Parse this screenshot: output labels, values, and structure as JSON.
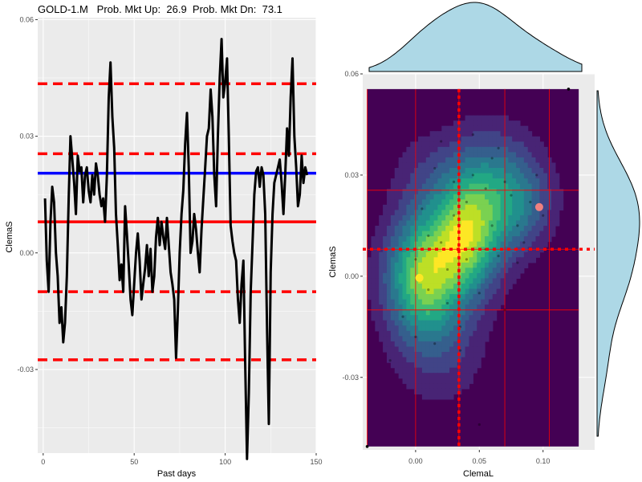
{
  "title": "GOLD-1.M   Prob. Mkt Up:  26.9  Prob. Mkt Dn:  73.1",
  "colors": {
    "panel_bg": "#ebebeb",
    "grid": "#ffffff",
    "series_line": "#000000",
    "level_lines": "#ff0000",
    "current_line": "#0000ff",
    "marginal_fill": "#add8e6",
    "density_low": "#440154",
    "density_high": "#fde725",
    "highlight_point": "#f08080"
  },
  "chart_data": [
    {
      "type": "line",
      "xlabel": "Past days",
      "ylabel": "ClemaS",
      "xlim": [
        -3,
        150
      ],
      "ylim": [
        -0.0515,
        0.0605
      ],
      "x_ticks": [
        0,
        50,
        100,
        150
      ],
      "x_tick_labels": [
        "0",
        "50",
        "100",
        "150"
      ],
      "y_ticks": [
        -0.03,
        0.0,
        0.03,
        0.06
      ],
      "y_tick_labels": [
        "-0.03",
        "0.00",
        "0.03",
        "0.06"
      ],
      "grid": true,
      "series": [
        {
          "line_color": "#000000",
          "x": [
            1,
            2,
            3,
            4,
            5,
            6,
            7,
            8,
            9,
            10,
            11,
            12,
            13,
            14,
            15,
            16,
            17,
            18,
            19,
            20,
            21,
            22,
            23,
            24,
            25,
            26,
            27,
            28,
            29,
            30,
            31,
            32,
            33,
            34,
            35,
            36,
            37,
            38,
            39,
            40,
            41,
            42,
            43,
            44,
            45,
            46,
            47,
            48,
            49,
            50,
            51,
            52,
            53,
            54,
            55,
            56,
            57,
            58,
            59,
            60,
            61,
            62,
            63,
            64,
            65,
            66,
            67,
            68,
            69,
            70,
            71,
            72,
            73,
            74,
            75,
            76,
            77,
            78,
            79,
            80,
            81,
            82,
            83,
            84,
            85,
            86,
            87,
            88,
            89,
            90,
            91,
            92,
            93,
            94,
            95,
            96,
            97,
            98,
            99,
            100,
            101,
            102,
            103,
            104,
            105,
            106,
            107,
            108,
            109,
            110,
            111,
            112,
            113,
            114,
            115,
            116,
            117,
            118,
            119,
            120,
            121,
            122,
            123,
            124,
            125,
            126,
            127,
            128,
            129,
            130,
            131,
            132,
            133,
            134,
            135,
            136,
            137,
            138,
            139,
            140,
            141,
            142,
            143,
            144,
            145
          ],
          "y": [
            0.014,
            -0.002,
            -0.01,
            0.008,
            0.017,
            0.013,
            0.0,
            -0.006,
            -0.018,
            -0.014,
            -0.023,
            -0.018,
            -0.006,
            0.014,
            0.03,
            0.024,
            0.018,
            0.01,
            0.025,
            0.021,
            0.022,
            0.013,
            0.02,
            0.022,
            0.016,
            0.013,
            0.02,
            0.015,
            0.023,
            0.02,
            0.015,
            0.012,
            0.014,
            0.008,
            0.02,
            0.04,
            0.049,
            0.035,
            0.027,
            0.01,
            0.002,
            -0.007,
            -0.003,
            -0.01,
            0.012,
            0.005,
            -0.003,
            -0.012,
            -0.016,
            -0.008,
            0.0,
            0.005,
            -0.002,
            -0.012,
            -0.008,
            -0.004,
            0.002,
            -0.006,
            0.001,
            -0.01,
            -0.006,
            0.004,
            0.009,
            0.002,
            0.008,
            0.004,
            0.001,
            0.009,
            0.002,
            -0.005,
            -0.008,
            -0.012,
            -0.027,
            -0.015,
            0.0,
            0.01,
            0.016,
            0.028,
            0.036,
            0.022,
            0.0,
            0.003,
            0.01,
            0.006,
            0.0,
            -0.005,
            0.006,
            0.014,
            0.022,
            0.03,
            0.032,
            0.042,
            0.035,
            0.02,
            0.012,
            0.03,
            0.045,
            0.055,
            0.04,
            0.044,
            0.05,
            0.03,
            0.007,
            0.003,
            0.0,
            -0.002,
            -0.012,
            -0.018,
            -0.008,
            -0.002,
            -0.028,
            -0.053,
            -0.036,
            -0.01,
            0.002,
            0.015,
            0.021,
            0.022,
            0.017,
            0.022,
            0.02,
            0.01,
            -0.02,
            -0.044,
            -0.005,
            0.01,
            0.018,
            0.02,
            0.022,
            0.024,
            0.018,
            0.01,
            0.02,
            0.032,
            0.025,
            0.04,
            0.05,
            0.03,
            0.022,
            0.012,
            0.015,
            0.025,
            0.018,
            0.022,
            0.02
          ]
        }
      ],
      "horizontal_lines": [
        {
          "y": 0.0435,
          "style": "dashed",
          "color": "#ff0000"
        },
        {
          "y": 0.0255,
          "style": "dashed",
          "color": "#ff0000"
        },
        {
          "y": 0.0205,
          "style": "solid",
          "color": "#0000ff"
        },
        {
          "y": 0.008,
          "style": "solid",
          "color": "#ff0000"
        },
        {
          "y": -0.01,
          "style": "dashed",
          "color": "#ff0000"
        },
        {
          "y": -0.0275,
          "style": "dashed",
          "color": "#ff0000"
        }
      ]
    },
    {
      "type": "heatmap",
      "xlabel": "ClemaL",
      "ylabel": "ClemaS",
      "xlim": [
        -0.0415,
        0.1405
      ],
      "ylim": [
        -0.0515,
        0.06
      ],
      "x_ticks": [
        0.0,
        0.05,
        0.1
      ],
      "x_tick_labels": [
        "0.00",
        "0.05",
        "0.10"
      ],
      "y_ticks": [
        -0.03,
        0.0,
        0.03,
        0.06
      ],
      "y_tick_labels": [
        "-0.03",
        "0.00",
        "0.03",
        "0.06"
      ],
      "grid": true,
      "density_extent": {
        "x": [
          -0.038,
          0.128
        ],
        "y": [
          -0.0505,
          0.0555
        ]
      },
      "kde_peaks": [
        {
          "x": 0.006,
          "y": 0.0,
          "sx": 0.021,
          "sy": 0.0125,
          "w": 1.0
        },
        {
          "x": 0.04,
          "y": 0.011,
          "sx": 0.019,
          "sy": 0.0115,
          "w": 0.85
        },
        {
          "x": 0.058,
          "y": 0.026,
          "sx": 0.026,
          "sy": 0.0125,
          "w": 0.55
        },
        {
          "x": 0.085,
          "y": 0.021,
          "sx": 0.018,
          "sy": 0.0095,
          "w": 0.28
        },
        {
          "x": 0.02,
          "y": -0.022,
          "sx": 0.026,
          "sy": 0.0125,
          "w": 0.22
        },
        {
          "x": 0.005,
          "y": 0.03,
          "sx": 0.02,
          "sy": 0.01,
          "w": 0.15
        }
      ],
      "vertical_grid_lines": [
        -0.038,
        0.0,
        0.034,
        0.07,
        0.105
      ],
      "horizontal_grid_lines": [
        0.0255,
        0.008,
        -0.01
      ],
      "vertical_marker": {
        "x": 0.034,
        "style": "dotted",
        "color": "#ff0000"
      },
      "horizontal_marker": {
        "y": 0.008,
        "style": "dotted",
        "color": "#ff0000"
      },
      "highlight_points": [
        {
          "x": 0.003,
          "y": -0.0005,
          "color": "#fde725"
        },
        {
          "x": 0.097,
          "y": 0.0205,
          "color": "#f08080"
        }
      ],
      "scatter": {
        "x": [
          -0.038,
          0.05,
          0.12,
          0.0,
          0.01,
          0.02,
          0.03,
          0.04,
          0.045,
          0.055,
          0.06,
          0.07,
          0.075,
          0.08,
          0.09,
          0.1,
          0.025,
          0.035,
          0.015,
          -0.01,
          -0.02,
          0.005,
          0.065,
          0.085,
          0.095,
          0.02,
          0.04,
          0.06,
          0.03,
          0.01,
          0.05,
          0.07,
          0.045,
          0.055,
          0.025,
          0.035,
          0.0,
          0.015,
          0.065,
          0.08
        ],
        "y": [
          -0.0505,
          -0.044,
          0.0555,
          0.005,
          -0.004,
          0.01,
          0.018,
          0.022,
          0.03,
          0.026,
          0.035,
          0.028,
          0.024,
          0.015,
          0.022,
          0.018,
          -0.008,
          -0.015,
          -0.02,
          -0.012,
          -0.025,
          0.02,
          0.006,
          0.01,
          0.03,
          0.04,
          0.005,
          0.015,
          0.028,
          0.012,
          -0.005,
          -0.01,
          0.042,
          0.008,
          0.002,
          -0.022,
          -0.018,
          0.032,
          0.038,
          0.004
        ]
      },
      "top_marginal": {
        "type": "density",
        "x_peaks": [
          0.008,
          0.04,
          0.065,
          0.1
        ],
        "weights": [
          0.75,
          1.0,
          0.85,
          0.45
        ]
      },
      "right_marginal": {
        "type": "density",
        "y_peaks": [
          -0.002,
          0.015,
          0.028,
          -0.025
        ],
        "weights": [
          0.9,
          1.0,
          0.8,
          0.35
        ]
      }
    }
  ]
}
